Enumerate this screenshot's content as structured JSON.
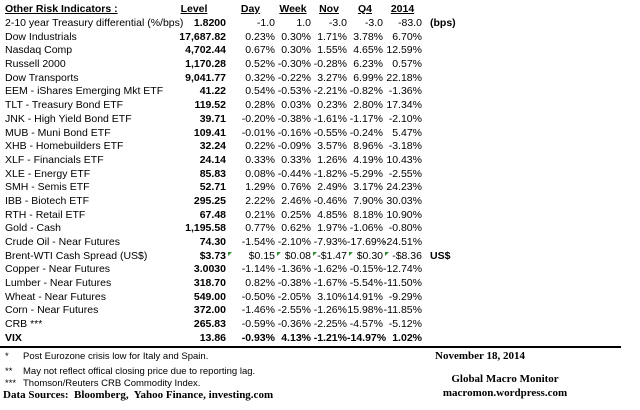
{
  "table": {
    "title": "Other Risk Indicators :",
    "headers": {
      "level": "Level",
      "day": "Day",
      "week": "Week",
      "nov": "Nov",
      "q4": "Q4",
      "y2014": "2014"
    },
    "rows": [
      {
        "label": "2-10 year Treasury differential (%/bps)",
        "level": "1.8200",
        "day": "-1.0",
        "week": "1.0",
        "nov": "-3.0",
        "q4": "-3.0",
        "y2014": "-83.0",
        "extra": "(bps)",
        "bold": false,
        "flagged": false
      },
      {
        "label": "Dow Industrials",
        "level": "17,687.82",
        "day": "0.23%",
        "week": "0.30%",
        "nov": "1.71%",
        "q4": "3.78%",
        "y2014": "6.70%",
        "extra": "",
        "bold": false,
        "flagged": false
      },
      {
        "label": "Nasdaq Comp",
        "level": "4,702.44",
        "day": "0.67%",
        "week": "0.30%",
        "nov": "1.55%",
        "q4": "4.65%",
        "y2014": "12.59%",
        "extra": "",
        "bold": false,
        "flagged": false
      },
      {
        "label": "Russell 2000",
        "level": "1,170.28",
        "day": "0.52%",
        "week": "-0.30%",
        "nov": "-0.28%",
        "q4": "6.23%",
        "y2014": "0.57%",
        "extra": "",
        "bold": false,
        "flagged": false
      },
      {
        "label": "Dow Transports",
        "level": "9,041.77",
        "day": "0.32%",
        "week": "-0.22%",
        "nov": "3.27%",
        "q4": "6.99%",
        "y2014": "22.18%",
        "extra": "",
        "bold": false,
        "flagged": false
      },
      {
        "label": "EEM - iShares Emerging Mkt ETF",
        "level": "41.22",
        "day": "0.54%",
        "week": "-0.53%",
        "nov": "-2.21%",
        "q4": "-0.82%",
        "y2014": "-1.36%",
        "extra": "",
        "bold": false,
        "flagged": false
      },
      {
        "label": "TLT - Treasury Bond ETF",
        "level": "119.52",
        "day": "0.28%",
        "week": "0.03%",
        "nov": "0.23%",
        "q4": "2.80%",
        "y2014": "17.34%",
        "extra": "",
        "bold": false,
        "flagged": false
      },
      {
        "label": "JNK - High Yield Bond ETF",
        "level": "39.71",
        "day": "-0.20%",
        "week": "-0.38%",
        "nov": "-1.61%",
        "q4": "-1.17%",
        "y2014": "-2.10%",
        "extra": "",
        "bold": false,
        "flagged": false
      },
      {
        "label": "MUB - Muni Bond ETF",
        "level": "109.41",
        "day": "-0.01%",
        "week": "-0.16%",
        "nov": "-0.55%",
        "q4": "-0.24%",
        "y2014": "5.47%",
        "extra": "",
        "bold": false,
        "flagged": false
      },
      {
        "label": "XHB - Homebuilders ETF",
        "level": "32.24",
        "day": "0.22%",
        "week": "-0.09%",
        "nov": "3.57%",
        "q4": "8.96%",
        "y2014": "-3.18%",
        "extra": "",
        "bold": false,
        "flagged": false
      },
      {
        "label": "XLF - Financials ETF",
        "level": "24.14",
        "day": "0.33%",
        "week": "0.33%",
        "nov": "1.26%",
        "q4": "4.19%",
        "y2014": "10.43%",
        "extra": "",
        "bold": false,
        "flagged": false
      },
      {
        "label": "XLE - Energy ETF",
        "level": "85.83",
        "day": "0.08%",
        "week": "-0.44%",
        "nov": "-1.82%",
        "q4": "-5.29%",
        "y2014": "-2.55%",
        "extra": "",
        "bold": false,
        "flagged": false
      },
      {
        "label": "SMH - Semis ETF",
        "level": "52.71",
        "day": "1.29%",
        "week": "0.76%",
        "nov": "2.49%",
        "q4": "3.17%",
        "y2014": "24.23%",
        "extra": "",
        "bold": false,
        "flagged": false
      },
      {
        "label": "IBB - Biotech ETF",
        "level": "295.25",
        "day": "2.22%",
        "week": "2.46%",
        "nov": "-0.46%",
        "q4": "7.90%",
        "y2014": "30.03%",
        "extra": "",
        "bold": false,
        "flagged": false
      },
      {
        "label": "RTH - Retail ETF",
        "level": "67.48",
        "day": "0.21%",
        "week": "0.25%",
        "nov": "4.85%",
        "q4": "8.18%",
        "y2014": "10.90%",
        "extra": "",
        "bold": false,
        "flagged": false
      },
      {
        "label": "Gold - Cash",
        "level": "1,195.58",
        "day": "0.77%",
        "week": "0.62%",
        "nov": "1.97%",
        "q4": "-1.06%",
        "y2014": "-0.80%",
        "extra": "",
        "bold": false,
        "flagged": false
      },
      {
        "label": "Crude Oil - Near Futures",
        "level": "74.30",
        "day": "-1.54%",
        "week": "-2.10%",
        "nov": "-7.93%",
        "q4": "-17.69%",
        "y2014": "-24.51%",
        "extra": "",
        "bold": false,
        "flagged": false
      },
      {
        "label": "Brent-WTI Cash Spread (US$)",
        "level": "$3.73",
        "day": "$0.15",
        "week": "$0.08",
        "nov": "-$1.47",
        "q4": "$0.30",
        "y2014": "-$8.36",
        "extra": "US$",
        "bold": false,
        "flagged": true
      },
      {
        "label": "Copper - Near Futures",
        "level": "3.0030",
        "day": "-1.14%",
        "week": "-1.36%",
        "nov": "-1.62%",
        "q4": "-0.15%",
        "y2014": "-12.74%",
        "extra": "",
        "bold": false,
        "flagged": false
      },
      {
        "label": "Lumber - Near Futures",
        "level": "318.70",
        "day": "0.82%",
        "week": "-0.38%",
        "nov": "-1.67%",
        "q4": "-5.54%",
        "y2014": "-11.50%",
        "extra": "",
        "bold": false,
        "flagged": false
      },
      {
        "label": "Wheat - Near Futures",
        "level": "549.00",
        "day": "-0.50%",
        "week": "-2.05%",
        "nov": "3.10%",
        "q4": "14.91%",
        "y2014": "-9.29%",
        "extra": "",
        "bold": false,
        "flagged": false
      },
      {
        "label": "Corn - Near Futures",
        "level": "372.00",
        "day": "-1.46%",
        "week": "-2.55%",
        "nov": "-1.26%",
        "q4": "15.98%",
        "y2014": "-11.85%",
        "extra": "",
        "bold": false,
        "flagged": false
      },
      {
        "label": "CRB ***",
        "level": "265.83",
        "day": "-0.59%",
        "week": "-0.36%",
        "nov": "-2.25%",
        "q4": "-4.57%",
        "y2014": "-5.12%",
        "extra": "",
        "bold": false,
        "flagged": false
      },
      {
        "label": "VIX",
        "level": "13.86",
        "day": "-0.93%",
        "week": "4.13%",
        "nov": "-1.21%",
        "q4": "-14.97%",
        "y2014": "1.02%",
        "extra": "",
        "bold": true,
        "flagged": false
      }
    ]
  },
  "footnotes": [
    {
      "marker": "*",
      "text": "Post Eurozone crisis low for Italy and Spain."
    },
    {
      "marker": "**",
      "text": "May not reflect offical closing price due to reporting lag."
    },
    {
      "marker": "***",
      "text": "Thomson/Reuters CRB Commodity Index."
    }
  ],
  "sources": "Data Sources:  Bloomberg,  Yahoo Finance, investing.com",
  "date": "November 18, 2014",
  "brand": {
    "name": "Global Macro Monitor",
    "url": "macromon.wordpress.com"
  },
  "colors": {
    "flag_green": "#2e8b2e",
    "rule": "#000000",
    "text": "#000000",
    "background": "#ffffff"
  }
}
